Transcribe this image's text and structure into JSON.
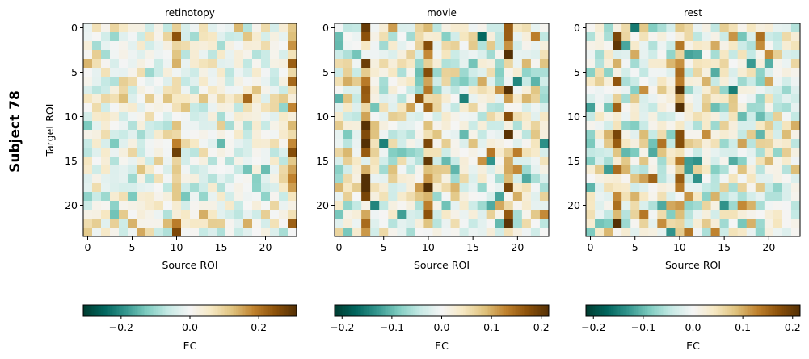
{
  "figure": {
    "suptitle": "Subject 78",
    "colormap": [
      "#003c30",
      "#01665e",
      "#35978f",
      "#80cdc1",
      "#c7eae5",
      "#f5f5f5",
      "#f6e8c3",
      "#dfc27d",
      "#bf812d",
      "#8c510a",
      "#543005"
    ]
  },
  "chart_data": [
    {
      "type": "heatmap",
      "title": "retinotopy",
      "xlabel": "Source ROI",
      "ylabel": "Target ROI",
      "n": 24,
      "xticks": [
        0,
        5,
        10,
        15,
        20
      ],
      "yticks": [
        0,
        5,
        10,
        15,
        20
      ],
      "vmin": -0.31,
      "vmax": 0.31,
      "colorbar": {
        "label": "EC",
        "ticks": [
          -0.2,
          0.0,
          0.2
        ],
        "tick_labels": [
          "−0.2",
          "0.0",
          "0.2"
        ]
      },
      "strong_columns": [
        10,
        23
      ],
      "strong_rows": [
        8,
        22
      ],
      "seed": 78
    },
    {
      "type": "heatmap",
      "title": "movie",
      "xlabel": "Source ROI",
      "ylabel": "",
      "n": 24,
      "xticks": [
        0,
        5,
        10,
        15,
        20
      ],
      "yticks": [
        0,
        5,
        10,
        15,
        20
      ],
      "vmin": -0.215,
      "vmax": 0.215,
      "colorbar": {
        "label": "EC",
        "ticks": [
          -0.2,
          -0.1,
          0.0,
          0.1,
          0.2
        ],
        "tick_labels": [
          "−0.2",
          "−0.1",
          "0.0",
          "0.1",
          "0.2"
        ]
      },
      "strong_columns": [
        3,
        10,
        19
      ],
      "strong_rows": [
        7
      ],
      "seed": 179
    },
    {
      "type": "heatmap",
      "title": "rest",
      "xlabel": "Source ROI",
      "ylabel": "",
      "n": 24,
      "xticks": [
        0,
        5,
        10,
        15,
        20
      ],
      "yticks": [
        0,
        5,
        10,
        15,
        20
      ],
      "vmin": -0.215,
      "vmax": 0.215,
      "colorbar": {
        "label": "EC",
        "ticks": [
          -0.2,
          -0.1,
          0.0,
          0.1,
          0.2
        ],
        "tick_labels": [
          "−0.2",
          "−0.1",
          "0.0",
          "0.1",
          "0.2"
        ]
      },
      "strong_columns": [
        3,
        10
      ],
      "strong_rows": [],
      "seed": 311
    }
  ]
}
